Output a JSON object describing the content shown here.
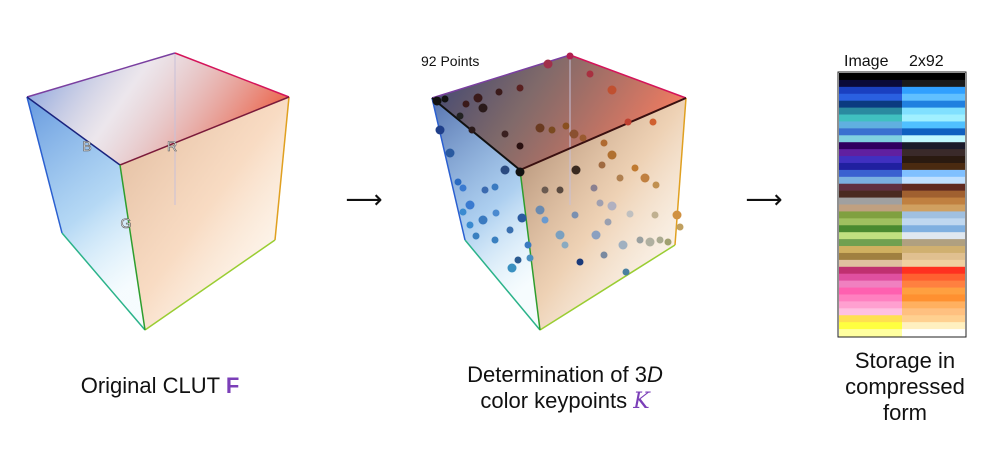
{
  "panel1": {
    "axis_b": "B",
    "axis_r": "R",
    "axis_g": "G",
    "caption_prefix": "Original CLUT ",
    "caption_symbol": "F"
  },
  "panel2": {
    "points_label": "92 Points",
    "caption_line1_prefix": "Determination of 3",
    "caption_line1_symbol": "D",
    "caption_line2_prefix": "color keypoints ",
    "caption_line2_symbol": "K"
  },
  "panel3": {
    "image_title_left": "Image",
    "image_title_right": "2x92",
    "caption_lines": [
      "Storage in",
      "compressed",
      "form"
    ]
  },
  "arrows": [
    "⟶",
    "⟶"
  ],
  "colors": {
    "accent": "#7b3fb8",
    "red_axis": "#d4145a",
    "blue_axis": "#1a237e",
    "green_axis": "#2e9e2e"
  }
}
